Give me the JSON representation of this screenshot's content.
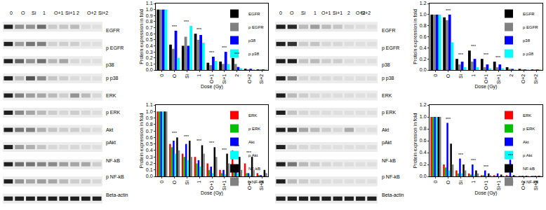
{
  "chart_data": [
    {
      "type": "bar",
      "x_label": "Dose (Gy)",
      "y_label": "Protein expression in fold",
      "categories": [
        "0",
        "O",
        "Si",
        "1",
        "O+1",
        "Si+1",
        "2",
        "O+2",
        "Si+2"
      ],
      "ylim": [
        0,
        1.1
      ],
      "yticks": [
        {
          "value": 0,
          "label": "0.0"
        },
        0.1,
        0.2,
        0.3,
        0.4,
        0.5,
        0.6,
        0.7,
        0.8,
        0.9,
        {
          "value": 1,
          "label": "1.0"
        },
        1.1
      ],
      "grid": false,
      "legend": "upper right",
      "series": [
        {
          "name": "EGFR",
          "color": "#000000",
          "values": [
            1,
            0.42,
            0.4,
            0.6,
            0.12,
            0.14,
            0.2,
            0.02,
            0.01
          ]
        },
        {
          "name": "p EGFR",
          "color": "#808080",
          "values": [
            1,
            0.35,
            0.55,
            0.5,
            0.08,
            0.1,
            0.1,
            0.01,
            0.01
          ]
        },
        {
          "name": "p38",
          "color": "#0000ff",
          "values": [
            1,
            0.65,
            0.4,
            0.58,
            0.22,
            0.3,
            0.05,
            0.02,
            0.01
          ]
        },
        {
          "name": "p p38",
          "color": "#00ffff",
          "values": [
            1,
            0.2,
            0.73,
            0.45,
            0.15,
            0.1,
            0.03,
            0.01,
            0.01
          ]
        }
      ],
      "annotations": [
        {
          "category": "O",
          "text": "***"
        },
        {
          "category": "Si",
          "text": "***"
        },
        {
          "category": "1",
          "text": "***"
        },
        {
          "category": "O+1",
          "text": "***"
        },
        {
          "category": "Si+1",
          "text": "***"
        },
        {
          "category": "2",
          "text": "***"
        }
      ]
    },
    {
      "type": "bar",
      "x_label": "Dose (Gy)",
      "y_label": "Protein expression in fold",
      "categories": [
        "0",
        "O",
        "Si",
        "1",
        "O+1",
        "Si+1",
        "2",
        "O+2",
        "Si+2"
      ],
      "ylim": [
        0,
        1.1
      ],
      "yticks": [
        {
          "value": 0,
          "label": "0.0"
        },
        0.1,
        0.2,
        0.3,
        0.4,
        0.5,
        0.6,
        0.7,
        0.8,
        0.9,
        {
          "value": 1,
          "label": "1.0"
        },
        1.1
      ],
      "grid": false,
      "legend": "upper right",
      "series": [
        {
          "name": "ERK",
          "color": "#ff0000",
          "values": [
            1,
            0.5,
            0.35,
            0.3,
            0.2,
            0.1,
            0.4,
            0.2,
            0.05
          ]
        },
        {
          "name": "p ERK",
          "color": "#00c000",
          "values": [
            1,
            0.45,
            0.3,
            0.2,
            0.1,
            0.05,
            0.1,
            0.05,
            0.02
          ]
        },
        {
          "name": "Akt",
          "color": "#0000ff",
          "values": [
            1,
            0.55,
            0.5,
            0.25,
            0.15,
            0.1,
            0.1,
            0.05,
            0.02
          ]
        },
        {
          "name": "p Akt",
          "color": "#00ffff",
          "values": [
            1,
            0.35,
            0.25,
            0.15,
            0.05,
            0.03,
            0.05,
            0.02,
            0.01
          ]
        },
        {
          "name": "NF-kB",
          "color": "#000000",
          "values": [
            1,
            0.6,
            0.55,
            0.48,
            0.45,
            0.35,
            0.3,
            0.3,
            0.1
          ]
        },
        {
          "name": "p NF-kB",
          "color": "#808080",
          "values": [
            1,
            0.4,
            0.3,
            0.35,
            0.3,
            0.2,
            0.1,
            0.1,
            0.05
          ]
        }
      ],
      "annotations": [
        {
          "category": "O",
          "text": "***"
        },
        {
          "category": "Si",
          "text": "***"
        },
        {
          "category": "1",
          "text": "***"
        },
        {
          "category": "O+1",
          "text": "***"
        },
        {
          "category": "Si+1",
          "text": "***"
        },
        {
          "category": "2",
          "text": "***"
        },
        {
          "category": "O+2",
          "text": "***"
        }
      ]
    },
    {
      "type": "bar",
      "x_label": "Dose (Gy)",
      "y_label": "Protein expression in fold",
      "categories": [
        "0",
        "O",
        "Si",
        "1",
        "O+1",
        "Si+1",
        "2",
        "O+2",
        "Si+2"
      ],
      "ylim": [
        0,
        1.2
      ],
      "yticks": [
        {
          "value": 0,
          "label": "0.0"
        },
        0.2,
        0.4,
        0.6,
        0.8,
        {
          "value": 1,
          "label": "1.0"
        },
        1.2
      ],
      "grid": false,
      "legend": "upper right",
      "series": [
        {
          "name": "EGFR",
          "color": "#000000",
          "values": [
            1,
            0.95,
            0.2,
            0.35,
            0.2,
            0.15,
            0.05,
            0.02,
            0.01
          ]
        },
        {
          "name": "p EGFR",
          "color": "#808080",
          "values": [
            1,
            0.9,
            0.1,
            0.15,
            0.05,
            0.05,
            0.02,
            0.01,
            0.01
          ]
        },
        {
          "name": "p38",
          "color": "#0000ff",
          "values": [
            1,
            1,
            0.15,
            0.2,
            0.1,
            0.1,
            0.02,
            0.01,
            0.01
          ]
        },
        {
          "name": "p p38",
          "color": "#00ffff",
          "values": [
            1,
            0.5,
            0.05,
            0.05,
            0.03,
            0.03,
            0.01,
            0.01,
            0.01
          ]
        }
      ],
      "annotations": [
        {
          "category": "O",
          "text": "***"
        },
        {
          "category": "Si",
          "text": "***"
        },
        {
          "category": "1",
          "text": "***"
        },
        {
          "category": "O+1",
          "text": "***"
        },
        {
          "category": "Si+1",
          "text": "***"
        }
      ]
    },
    {
      "type": "bar",
      "x_label": "Dose (Gy)",
      "y_label": "Protein expression in fold",
      "categories": [
        "0",
        "O",
        "Si",
        "1",
        "O+1",
        "Si+1",
        "2",
        "O+2",
        "Si+2"
      ],
      "ylim": [
        0,
        1.2
      ],
      "yticks": [
        {
          "value": 0,
          "label": "0.0"
        },
        0.2,
        0.4,
        0.6,
        0.8,
        {
          "value": 1,
          "label": "1.0"
        },
        1.2
      ],
      "grid": false,
      "legend": "upper right",
      "series": [
        {
          "name": "ERK",
          "color": "#ff0000",
          "values": [
            1,
            0.2,
            0.1,
            0.05,
            0.02,
            0.02,
            0.02,
            0.01,
            0.01
          ]
        },
        {
          "name": "p ERK",
          "color": "#00c000",
          "values": [
            1,
            0.15,
            0.05,
            0.03,
            0.02,
            0.01,
            0.01,
            0.01,
            0.01
          ]
        },
        {
          "name": "Akt",
          "color": "#0000ff",
          "values": [
            1,
            0.9,
            0.3,
            0.2,
            0.1,
            0.05,
            0.28,
            0.01,
            0.01
          ]
        },
        {
          "name": "p Akt",
          "color": "#00ffff",
          "values": [
            1,
            0.1,
            0.05,
            0.03,
            0.01,
            0.01,
            0.01,
            0.01,
            0.01
          ]
        },
        {
          "name": "NF-kB",
          "color": "#000000",
          "values": [
            1,
            0.55,
            0.2,
            0.1,
            0.05,
            0.03,
            0.02,
            0.01,
            0.01
          ]
        },
        {
          "name": "p NF-kB",
          "color": "#808080",
          "values": [
            1,
            0.2,
            0.1,
            0.05,
            0.02,
            0.01,
            0.01,
            0.01,
            0.01
          ]
        }
      ],
      "annotations": [
        {
          "category": "O",
          "text": "***"
        },
        {
          "category": "Si",
          "text": "***"
        },
        {
          "category": "1",
          "text": "***"
        },
        {
          "category": "O+1",
          "text": "***"
        },
        {
          "category": "2",
          "text": "***"
        }
      ]
    }
  ],
  "blots": [
    {
      "lanes": [
        "0",
        "O",
        "Si",
        "1",
        "O+1",
        "Si+1",
        "2",
        "O+2",
        "Si+2"
      ],
      "rows": [
        {
          "label": "EGFR",
          "series": "EGFR"
        },
        {
          "label": "p EGFR",
          "series": "p EGFR"
        },
        {
          "label": "p38",
          "series": "p38"
        },
        {
          "label": "p p38",
          "series": "p p38"
        },
        {
          "label": "ERK",
          "series": "ERK"
        },
        {
          "label": "p ERK",
          "series": "p ERK"
        },
        {
          "label": "Akt",
          "series": "Akt"
        },
        {
          "label": "pAkt",
          "series": "p Akt"
        },
        {
          "label": "NF-kB",
          "series": "NF-kB"
        },
        {
          "label": "p NF-kB",
          "series": "p NF-kB"
        },
        {
          "label": "Beta-actin"
        }
      ]
    },
    {
      "lanes": [
        "0",
        "O",
        "Si",
        "1",
        "O+1",
        "Si+1",
        "2",
        "O+2",
        "Si+2"
      ],
      "rows": [
        {
          "label": "EGFR",
          "series": "EGFR"
        },
        {
          "label": "p EGFR",
          "series": "p EGFR"
        },
        {
          "label": "p38",
          "series": "p38"
        },
        {
          "label": "p p38",
          "series": "p p38"
        },
        {
          "label": "ERK",
          "series": "ERK"
        },
        {
          "label": "p ERK",
          "series": "p ERK"
        },
        {
          "label": "Akt",
          "series": "Akt"
        },
        {
          "label": "pAkt",
          "series": "p Akt"
        },
        {
          "label": "NF-kB",
          "series": "NF-kB"
        },
        {
          "label": "p NF-kB",
          "series": "p NF-kB"
        },
        {
          "label": "Beta-actin"
        }
      ]
    }
  ]
}
